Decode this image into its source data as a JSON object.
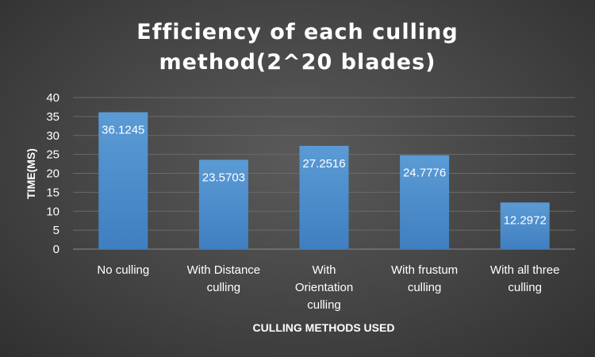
{
  "chart_data": {
    "type": "bar",
    "title_lines": [
      "Efficiency of each culling",
      "method(2^20 blades)"
    ],
    "xlabel": "CULLING METHODS USED",
    "ylabel": "TIME(MS)",
    "ylim": [
      0,
      40
    ],
    "yticks": [
      0,
      5,
      10,
      15,
      20,
      25,
      30,
      35,
      40
    ],
    "categories": [
      [
        "No culling"
      ],
      [
        "With Distance",
        "culling"
      ],
      [
        "With",
        "Orientation",
        "culling"
      ],
      [
        "With frustum",
        "culling"
      ],
      [
        "With all three",
        "culling"
      ]
    ],
    "values": [
      36.1245,
      23.5703,
      27.2516,
      24.7776,
      12.2972
    ],
    "data_labels": [
      "36.1245",
      "23.5703",
      "27.2516",
      "24.7776",
      "12.2972"
    ],
    "grid": true,
    "legend": "none",
    "colors": {
      "bar_top": "#5b9bd5",
      "bar_bottom": "#3f7fc0"
    }
  }
}
